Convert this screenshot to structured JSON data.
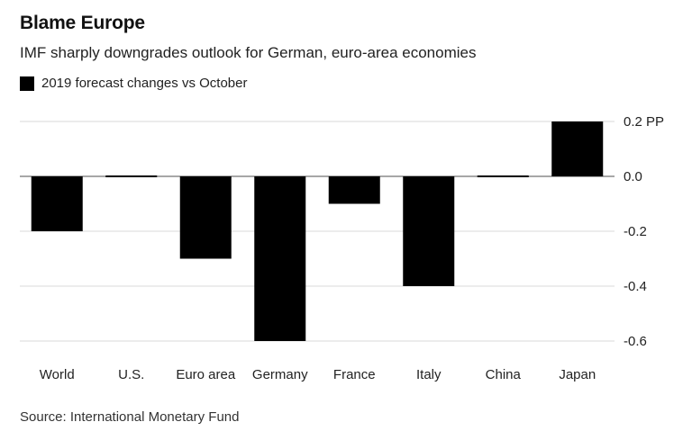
{
  "header": {
    "title": "Blame Europe",
    "subtitle": "IMF sharply downgrades outlook for German, euro-area economies"
  },
  "footer": {
    "source": "Source: International Monetary Fund"
  },
  "chart_data": {
    "type": "bar",
    "title": "Blame Europe",
    "subtitle": "IMF sharply downgrades outlook for German, euro-area economies",
    "categories": [
      "World",
      "U.S.",
      "Euro area",
      "Germany",
      "France",
      "Italy",
      "China",
      "Japan"
    ],
    "series": [
      {
        "name": "2019 forecast changes vs October",
        "color": "#000000",
        "values": [
          -0.2,
          0.0,
          -0.3,
          -0.6,
          -0.1,
          -0.4,
          0.0,
          0.2
        ]
      }
    ],
    "ylim": [
      -0.6,
      0.2
    ],
    "yticks": [
      0.2,
      0.0,
      -0.2,
      -0.4,
      -0.6
    ],
    "ytick_labels": [
      "0.2 PP",
      "0.0",
      "-0.2",
      "-0.4",
      "-0.6"
    ],
    "y_axis_position": "right",
    "grid": true,
    "legend_position": "top-left",
    "xlabel": "",
    "ylabel": ""
  }
}
